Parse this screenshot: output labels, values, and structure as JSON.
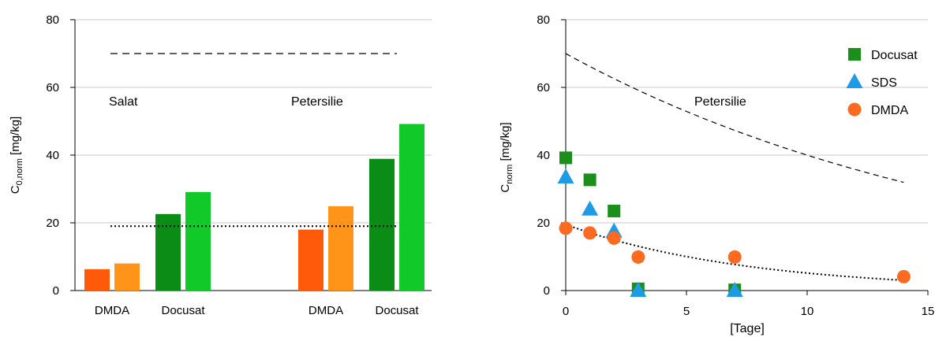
{
  "chart_data": [
    {
      "type": "bar",
      "ylabel_main": "C",
      "ylabel_sub": "0,norm",
      "ylabel_unit": " [mg/kg]",
      "ylim": [
        0,
        80
      ],
      "yticks": [
        0,
        20,
        40,
        60,
        80
      ],
      "grid": true,
      "annotations": [
        "Salat",
        "Petersilie"
      ],
      "groups": [
        {
          "name": "Salat",
          "bars": [
            {
              "category": "DMDA",
              "values": [
                6.3,
                8.0
              ],
              "colors": [
                "#ff5a0a",
                "#ff9419"
              ]
            },
            {
              "category": "Docusat",
              "values": [
                22.6,
                29.1
              ],
              "colors": [
                "#0a8c16",
                "#12c92a"
              ]
            }
          ]
        },
        {
          "name": "Petersilie",
          "bars": [
            {
              "category": "DMDA",
              "values": [
                18.0,
                24.9
              ],
              "colors": [
                "#ff5a0a",
                "#ff9419"
              ]
            },
            {
              "category": "Docusat",
              "values": [
                38.9,
                49.2
              ],
              "colors": [
                "#0a8c16",
                "#12c92a"
              ]
            }
          ]
        }
      ],
      "reference_lines": [
        {
          "style": "dashed",
          "y": 70
        },
        {
          "style": "dotted",
          "y": 19
        }
      ]
    },
    {
      "type": "scatter",
      "ylabel_main": "C",
      "ylabel_sub": "norm",
      "ylabel_unit": " [mg/kg]",
      "xlabel": "[Tage]",
      "xlim": [
        0,
        15
      ],
      "ylim": [
        0,
        80
      ],
      "xticks": [
        0,
        5,
        10,
        15
      ],
      "yticks": [
        0,
        20,
        40,
        60,
        80
      ],
      "grid": true,
      "legend_position": "top-right",
      "annotations": [
        "Petersilie"
      ],
      "series": [
        {
          "name": "Docusat",
          "marker": "square",
          "color": "#1a8f1a",
          "x": [
            0,
            1,
            2,
            3,
            7
          ],
          "y": [
            39.2,
            32.7,
            23.5,
            0.5,
            0.2
          ]
        },
        {
          "name": "SDS",
          "marker": "triangle",
          "color": "#1e9be6",
          "x": [
            0,
            1,
            2,
            3,
            7
          ],
          "y": [
            33.5,
            24.0,
            17.5,
            0.0,
            0.0
          ]
        },
        {
          "name": "DMDA",
          "marker": "circle",
          "color": "#ff6a21",
          "x": [
            0,
            1,
            2,
            3,
            7,
            14
          ],
          "y": [
            18.4,
            17.0,
            15.5,
            9.9,
            9.9,
            4.1
          ]
        }
      ],
      "curves": [
        {
          "style": "dashed",
          "y0": 70,
          "k": 0.056
        },
        {
          "style": "dotted",
          "y0": 19.5,
          "k": 0.133
        }
      ]
    }
  ]
}
